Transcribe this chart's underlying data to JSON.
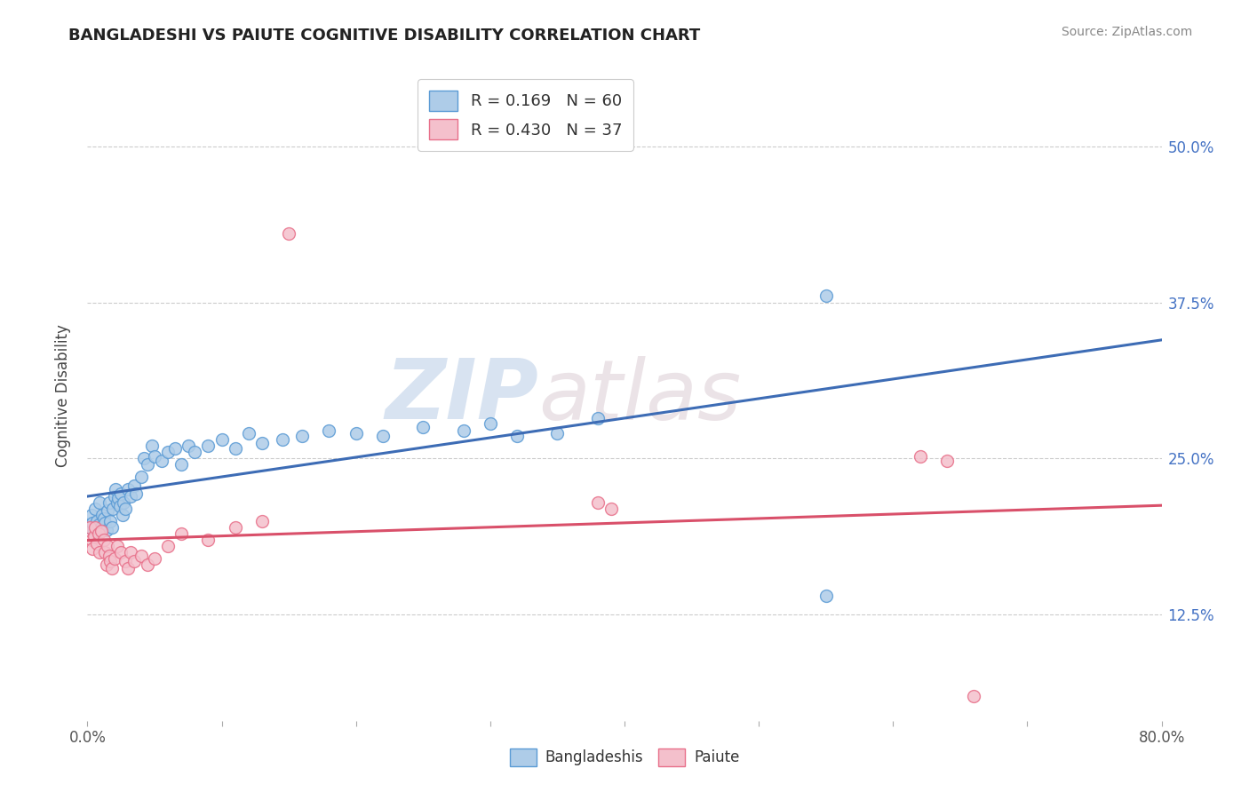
{
  "title": "BANGLADESHI VS PAIUTE COGNITIVE DISABILITY CORRELATION CHART",
  "source": "Source: ZipAtlas.com",
  "ylabel": "Cognitive Disability",
  "ytick_values": [
    0.125,
    0.25,
    0.375,
    0.5
  ],
  "ytick_labels": [
    "12.5%",
    "25.0%",
    "37.5%",
    "50.0%"
  ],
  "xlim": [
    0.0,
    0.8
  ],
  "ylim": [
    0.04,
    0.56
  ],
  "legend_r_n": [
    {
      "r": "0.169",
      "n": "60"
    },
    {
      "r": "0.430",
      "n": "37"
    }
  ],
  "watermark_zip": "ZIP",
  "watermark_atlas": "atlas",
  "bangladeshi_fill": "#aecce8",
  "bangladeshi_edge": "#5b9bd5",
  "paiute_fill": "#f4c0cc",
  "paiute_edge": "#e8708a",
  "line_blue": "#3d6cb5",
  "line_pink": "#d9506a",
  "bangladeshi_points": [
    [
      0.002,
      0.195
    ],
    [
      0.003,
      0.205
    ],
    [
      0.004,
      0.198
    ],
    [
      0.005,
      0.192
    ],
    [
      0.006,
      0.21
    ],
    [
      0.007,
      0.2
    ],
    [
      0.008,
      0.197
    ],
    [
      0.009,
      0.215
    ],
    [
      0.01,
      0.195
    ],
    [
      0.011,
      0.205
    ],
    [
      0.012,
      0.202
    ],
    [
      0.013,
      0.198
    ],
    [
      0.014,
      0.193
    ],
    [
      0.015,
      0.208
    ],
    [
      0.016,
      0.215
    ],
    [
      0.017,
      0.2
    ],
    [
      0.018,
      0.195
    ],
    [
      0.019,
      0.21
    ],
    [
      0.02,
      0.22
    ],
    [
      0.021,
      0.225
    ],
    [
      0.022,
      0.215
    ],
    [
      0.023,
      0.218
    ],
    [
      0.024,
      0.212
    ],
    [
      0.025,
      0.222
    ],
    [
      0.026,
      0.205
    ],
    [
      0.027,
      0.215
    ],
    [
      0.028,
      0.21
    ],
    [
      0.03,
      0.225
    ],
    [
      0.032,
      0.22
    ],
    [
      0.035,
      0.228
    ],
    [
      0.036,
      0.222
    ],
    [
      0.04,
      0.235
    ],
    [
      0.042,
      0.25
    ],
    [
      0.045,
      0.245
    ],
    [
      0.048,
      0.26
    ],
    [
      0.05,
      0.252
    ],
    [
      0.055,
      0.248
    ],
    [
      0.06,
      0.255
    ],
    [
      0.065,
      0.258
    ],
    [
      0.07,
      0.245
    ],
    [
      0.075,
      0.26
    ],
    [
      0.08,
      0.255
    ],
    [
      0.09,
      0.26
    ],
    [
      0.1,
      0.265
    ],
    [
      0.11,
      0.258
    ],
    [
      0.12,
      0.27
    ],
    [
      0.13,
      0.262
    ],
    [
      0.145,
      0.265
    ],
    [
      0.16,
      0.268
    ],
    [
      0.18,
      0.272
    ],
    [
      0.2,
      0.27
    ],
    [
      0.22,
      0.268
    ],
    [
      0.25,
      0.275
    ],
    [
      0.28,
      0.272
    ],
    [
      0.3,
      0.278
    ],
    [
      0.32,
      0.268
    ],
    [
      0.35,
      0.27
    ],
    [
      0.38,
      0.282
    ],
    [
      0.55,
      0.38
    ],
    [
      0.55,
      0.14
    ]
  ],
  "paiute_points": [
    [
      0.002,
      0.195
    ],
    [
      0.003,
      0.185
    ],
    [
      0.004,
      0.178
    ],
    [
      0.005,
      0.188
    ],
    [
      0.006,
      0.195
    ],
    [
      0.007,
      0.182
    ],
    [
      0.008,
      0.19
    ],
    [
      0.009,
      0.175
    ],
    [
      0.01,
      0.192
    ],
    [
      0.012,
      0.185
    ],
    [
      0.013,
      0.175
    ],
    [
      0.014,
      0.165
    ],
    [
      0.015,
      0.18
    ],
    [
      0.016,
      0.172
    ],
    [
      0.017,
      0.168
    ],
    [
      0.018,
      0.162
    ],
    [
      0.02,
      0.17
    ],
    [
      0.022,
      0.18
    ],
    [
      0.025,
      0.175
    ],
    [
      0.028,
      0.168
    ],
    [
      0.03,
      0.162
    ],
    [
      0.032,
      0.175
    ],
    [
      0.035,
      0.168
    ],
    [
      0.04,
      0.172
    ],
    [
      0.045,
      0.165
    ],
    [
      0.05,
      0.17
    ],
    [
      0.06,
      0.18
    ],
    [
      0.07,
      0.19
    ],
    [
      0.09,
      0.185
    ],
    [
      0.11,
      0.195
    ],
    [
      0.13,
      0.2
    ],
    [
      0.15,
      0.43
    ],
    [
      0.38,
      0.215
    ],
    [
      0.39,
      0.21
    ],
    [
      0.62,
      0.252
    ],
    [
      0.64,
      0.248
    ],
    [
      0.66,
      0.06
    ]
  ]
}
